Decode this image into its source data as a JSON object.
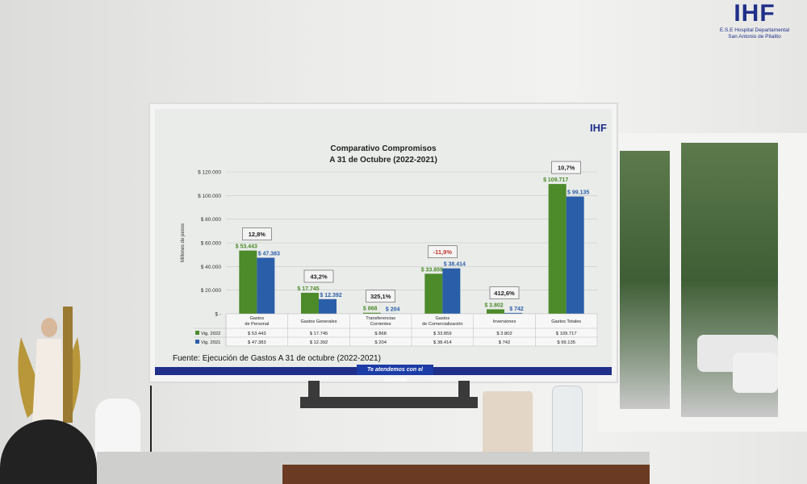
{
  "logo": {
    "mark": "IHF",
    "line1": "E.S.E Hospital Departamental",
    "line2": "San Antonio de Pitalito"
  },
  "tv_logo": "IHF",
  "slogan": "Te atendemos con el Corazón",
  "source": "Fuente: Ejecución de Gastos A 31 de octubre (2022-2021)",
  "chart_data": {
    "type": "bar",
    "title": "Comparativo Compromisos",
    "subtitle": "A 31 de Octubre (2022-2021)",
    "ylabel": "Millones de pesos",
    "ylim": [
      0,
      120000
    ],
    "yticks": [
      "$ -",
      "$ 20.000",
      "$ 40.000",
      "$ 60.000",
      "$ 80.000",
      "$ 100.000",
      "$ 120.000"
    ],
    "categories": [
      "Gastos de Personal",
      "Gastos Generales",
      "Transferencias Corrientes",
      "Gastos de Comercialización",
      "Inversiones",
      "Gastos Totales"
    ],
    "series": [
      {
        "name": "Vig. 2022",
        "color": "#4c8a2a",
        "values": [
          53443,
          17745,
          868,
          33859,
          3802,
          109717
        ],
        "labels": [
          "$ 53.443",
          "$ 17.745",
          "$ 868",
          "$ 33.859",
          "$ 3.802",
          "$ 109.717"
        ]
      },
      {
        "name": "Vig. 2021",
        "color": "#2b5ea8",
        "values": [
          47383,
          12392,
          204,
          38414,
          742,
          99135
        ],
        "labels": [
          "$ 47.383",
          "$ 12.392",
          "$ 204",
          "$ 38.414",
          "$ 742",
          "$ 99.135"
        ]
      }
    ],
    "variations": [
      "12,8%",
      "43,2%",
      "325,1%",
      "-11,9%",
      "412,6%",
      "10,7%"
    ],
    "variation_colors": [
      "#222222",
      "#222222",
      "#222222",
      "#c0392b",
      "#222222",
      "#222222"
    ],
    "table_rows": [
      {
        "label": "Vig. 2022",
        "cells": [
          "$ 53.443",
          "$ 17.745",
          "$ 868",
          "$ 33.859",
          "$ 3.802",
          "$ 109.717"
        ]
      },
      {
        "label": "Vig. 2021",
        "cells": [
          "$ 47.383",
          "$ 12.392",
          "$ 204",
          "$ 38.414",
          "$ 742",
          "$ 99.135"
        ]
      }
    ]
  }
}
